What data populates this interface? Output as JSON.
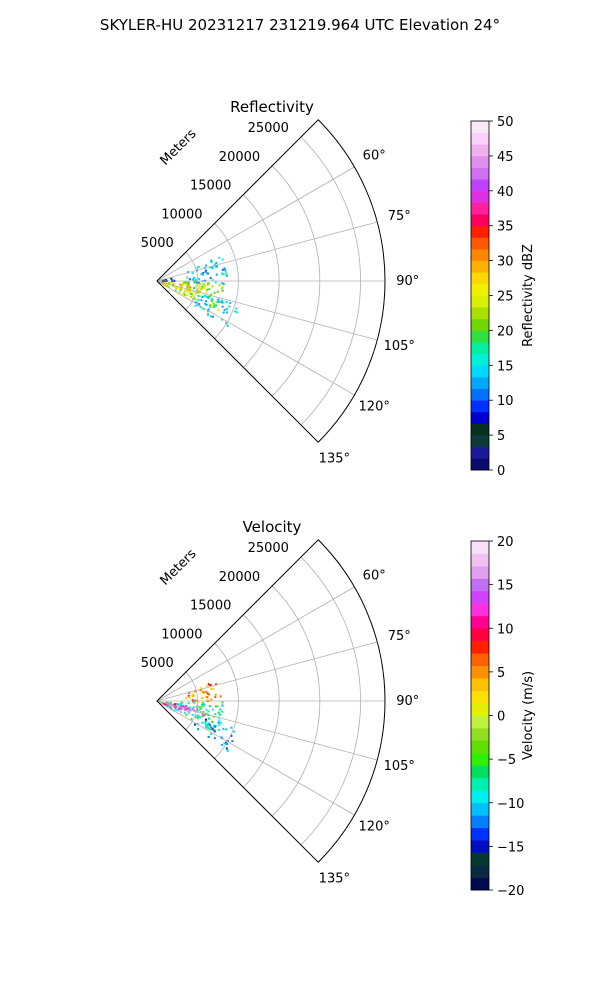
{
  "title": "SKYLER-HU  20231217  231219.964 UTC Elevation 24°",
  "chart_data": [
    {
      "type": "heatmap",
      "title": "Reflectivity",
      "projection": "polar-sector",
      "radial_label": "Meters",
      "radial_ticks": [
        5000,
        10000,
        15000,
        20000,
        25000
      ],
      "radial_tick_labels": [
        "5000",
        "10000",
        "15000",
        "20000",
        "25000"
      ],
      "range_max": 28000,
      "azimuth_range": [
        45,
        135
      ],
      "azimuth_ticks": [
        60,
        75,
        90,
        105,
        120,
        135
      ],
      "azimuth_tick_labels": [
        "60°",
        "75°",
        "90°",
        "105°",
        "120°",
        "135°"
      ],
      "grid": true,
      "colorbar": {
        "label": "Reflectivity dBZ",
        "min": 0,
        "max": 50,
        "ticks": [
          0,
          5,
          10,
          15,
          20,
          25,
          30,
          35,
          40,
          45,
          50
        ],
        "tick_labels": [
          "0",
          "5",
          "10",
          "15",
          "20",
          "25",
          "30",
          "35",
          "40",
          "45",
          "50"
        ],
        "colormap": "NWSRef"
      },
      "echo_regions": [
        {
          "az": [
            68,
            92
          ],
          "range": [
            3500,
            8500
          ],
          "value": 14
        },
        {
          "az": [
            90,
            116
          ],
          "range": [
            500,
            8200
          ],
          "value": 22
        },
        {
          "az": [
            95,
            110
          ],
          "range": [
            500,
            5500
          ],
          "value": 27
        },
        {
          "az": [
            106,
            125
          ],
          "range": [
            5000,
            10500
          ],
          "value": 15
        },
        {
          "az": [
            75,
            88
          ],
          "range": [
            500,
            2500
          ],
          "value": 8
        }
      ]
    },
    {
      "type": "heatmap",
      "title": "Velocity",
      "projection": "polar-sector",
      "radial_label": "Meters",
      "radial_ticks": [
        5000,
        10000,
        15000,
        20000,
        25000
      ],
      "radial_tick_labels": [
        "5000",
        "10000",
        "15000",
        "20000",
        "25000"
      ],
      "range_max": 28000,
      "azimuth_range": [
        45,
        135
      ],
      "azimuth_ticks": [
        60,
        75,
        90,
        105,
        120,
        135
      ],
      "azimuth_tick_labels": [
        "60°",
        "75°",
        "90°",
        "105°",
        "120°",
        "135°"
      ],
      "grid": true,
      "colorbar": {
        "label": "Velocity (m/s)",
        "min": -20,
        "max": 20,
        "ticks": [
          -20,
          -15,
          -10,
          -5,
          0,
          5,
          10,
          15,
          20
        ],
        "tick_labels": [
          "−20",
          "−15",
          "−10",
          "−5",
          "0",
          "5",
          "10",
          "15",
          "20"
        ],
        "colormap": "NWSVel"
      },
      "echo_regions": [
        {
          "az": [
            70,
            90
          ],
          "range": [
            3500,
            8000
          ],
          "value": 5
        },
        {
          "az": [
            90,
            118
          ],
          "range": [
            500,
            8200
          ],
          "value": -7
        },
        {
          "az": [
            96,
            108
          ],
          "range": [
            500,
            4500
          ],
          "value": 12
        },
        {
          "az": [
            100,
            114
          ],
          "range": [
            1500,
            6000
          ],
          "value": 16
        },
        {
          "az": [
            108,
            125
          ],
          "range": [
            5000,
            10500
          ],
          "value": -11
        }
      ]
    }
  ]
}
